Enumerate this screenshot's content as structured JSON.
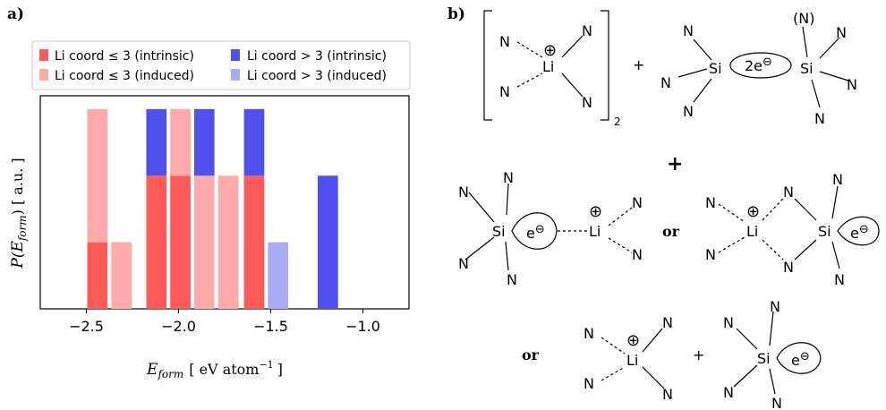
{
  "panels": {
    "a": "a)",
    "b": "b)"
  },
  "chart_data": {
    "type": "bar",
    "stacked": true,
    "xlabel": "E_form [eV atom^-1]",
    "ylabel": "P(E_form) [a.u.]",
    "xlim": [
      -2.75,
      -0.75
    ],
    "xticks": [
      "-2.5",
      "-2.0",
      "-1.5",
      "-1.0"
    ],
    "ylim": [
      0,
      3.2
    ],
    "y_ticks_shown": false,
    "grid": false,
    "legend_position": "top",
    "bar_width": 0.11,
    "series": [
      {
        "name": "Li coord ≤ 3 (intrinsic)",
        "color": "#ff5a5a",
        "points": [
          [
            -2.44,
            1
          ],
          [
            -2.12,
            2
          ],
          [
            -1.99,
            2
          ],
          [
            -1.59,
            2
          ]
        ]
      },
      {
        "name": "Li coord ≤ 3 (induced)",
        "color": "#ffaaaa",
        "points": [
          [
            -2.44,
            2
          ],
          [
            -2.31,
            1
          ],
          [
            -1.99,
            1
          ],
          [
            -1.86,
            2
          ],
          [
            -1.73,
            2
          ]
        ]
      },
      {
        "name": "Li coord > 3 (intrinsic)",
        "color": "#5050ee",
        "points": [
          [
            -2.12,
            1
          ],
          [
            -1.86,
            1
          ],
          [
            -1.59,
            1
          ],
          [
            -1.19,
            2
          ]
        ]
      },
      {
        "name": "Li coord > 3 (induced)",
        "color": "#aaaaf5",
        "points": [
          [
            -1.46,
            1
          ]
        ]
      }
    ]
  },
  "axis_text": {
    "x_main": "E",
    "x_sub": "form",
    "x_units": "[ eV atom",
    "x_exp": "−1",
    "x_close": "]",
    "y_main": "P(E",
    "y_sub": "form",
    "y_units": ") [ a.u. ]"
  },
  "scheme": {
    "N": "N",
    "Li": "Li",
    "Si": "Si",
    "plus": "+",
    "or": "or",
    "two_e": "2e",
    "e": "e",
    "minus": "⊖",
    "cation": "⊕",
    "subscript_2": "2",
    "optional_N": "(N)"
  }
}
